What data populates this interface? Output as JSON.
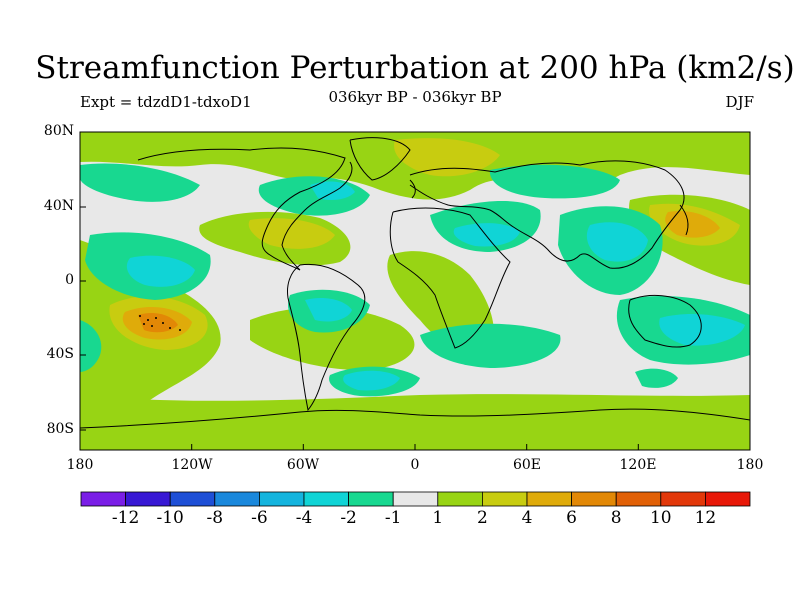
{
  "header": {
    "title": "Streamfunction Perturbation at 200 hPa (km2/s)",
    "left_label": "Expt = tdzdD1-tdxoD1",
    "center_label": "036kyr BP - 036kyr BP",
    "right_label": "DJF"
  },
  "map": {
    "latitude_labels": [
      "80N",
      "40N",
      "0",
      "40S",
      "80S"
    ],
    "longitude_labels": [
      "180",
      "120W",
      "60W",
      "0",
      "60E",
      "120E",
      "180"
    ]
  },
  "legend": {
    "colors": [
      "#7a1ee6",
      "#3818d4",
      "#1e4fd6",
      "#1a88dc",
      "#14b4de",
      "#10d4d6",
      "#18d890",
      "#e8e8e8",
      "#98d414",
      "#c8cc10",
      "#dfab0a",
      "#e28806",
      "#e16006",
      "#e2380a",
      "#e81808"
    ],
    "labels": [
      "-12",
      "-10",
      "-8",
      "-6",
      "-4",
      "-2",
      "-1",
      "1",
      "2",
      "4",
      "6",
      "8",
      "10",
      "12"
    ]
  }
}
